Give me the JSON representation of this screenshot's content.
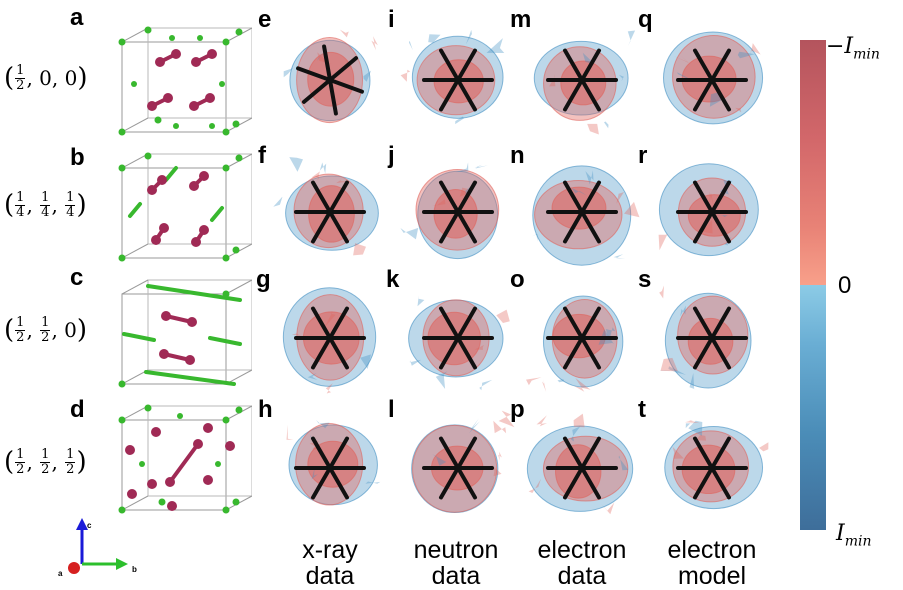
{
  "panel_letters": {
    "a": "a",
    "b": "b",
    "c": "c",
    "d": "d",
    "e": "e",
    "f": "f",
    "g": "g",
    "h": "h",
    "i": "i",
    "j": "j",
    "k": "k",
    "l": "l",
    "m": "m",
    "n": "n",
    "o": "o",
    "p": "p",
    "q": "q",
    "r": "r",
    "s": "s",
    "t": "t"
  },
  "q_vectors": [
    {
      "row": "a",
      "parts": [
        "1",
        "2",
        "0",
        "0"
      ]
    },
    {
      "row": "b",
      "parts": [
        "1",
        "4",
        "1",
        "4",
        "1",
        "4"
      ]
    },
    {
      "row": "c",
      "parts": [
        "1",
        "2",
        "1",
        "2",
        "0"
      ]
    },
    {
      "row": "d",
      "parts": [
        "1",
        "2",
        "1",
        "2",
        "1",
        "2"
      ]
    }
  ],
  "columns": [
    {
      "line1": "x-ray",
      "line2": "data"
    },
    {
      "line1": "neutron",
      "line2": "data"
    },
    {
      "line1": "electron",
      "line2": "data"
    },
    {
      "line1": "electron",
      "line2": "model"
    }
  ],
  "colorbar": {
    "top_prefix": "−I",
    "top_sub": "min",
    "middle": "0",
    "bottom_prefix": "I",
    "bottom_sub": "min",
    "colors": {
      "top": "#b4545d",
      "upper_mid": "#e88276",
      "zero_warm": "#f8a08a",
      "zero_cool": "#8ccbe6",
      "lower_mid": "#4b8db8",
      "bottom": "#3e6e9a"
    }
  },
  "axes": {
    "c": "c",
    "a": "a",
    "b": "b"
  },
  "atom_colors": {
    "maroon": "#a02a55",
    "green": "#38b82e",
    "positive": "#e0635c",
    "negative": "#3f8ec2"
  }
}
